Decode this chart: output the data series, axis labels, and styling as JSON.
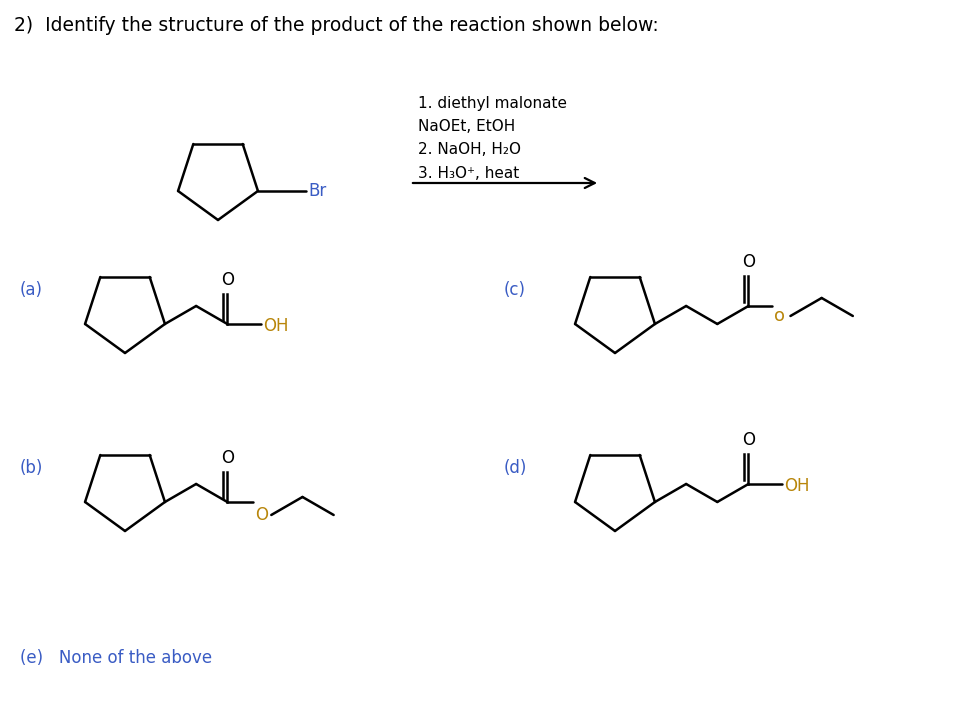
{
  "title": "2)  Identify the structure of the product of the reaction shown below:",
  "bg": "#ffffff",
  "br_color": "#3a5cc4",
  "oh_color": "#b8860b",
  "o_color": "#b8860b",
  "label_color": "#3a5cc4",
  "black": "#000000",
  "conditions": [
    "1. diethyl malonate",
    "NaOEt, EtOH",
    "2. NaOH, H₂O",
    "3. H₃O⁺, heat"
  ],
  "lw": 1.8,
  "seg": 36,
  "ring_sz": 42
}
